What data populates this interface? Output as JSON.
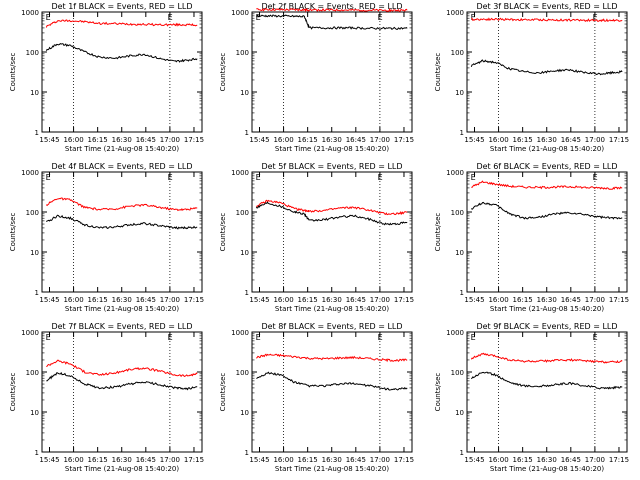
{
  "panel_common": {
    "ylabel": "Counts/sec",
    "xlabel": "Start Time (21-Aug-08 15:40:20)",
    "x_ticks": [
      "15:45",
      "16:00",
      "16:15",
      "16:30",
      "16:45",
      "17:00",
      "17:15"
    ],
    "y_ticks": [
      "1",
      "10",
      "100",
      "1000"
    ],
    "event_markers": [
      "E",
      "E"
    ],
    "colors": {
      "events": "#000000",
      "lld": "#ff0000",
      "axes": "#000000",
      "background": "#ffffff"
    }
  },
  "chart_data": [
    {
      "type": "line",
      "title": "Det 1f BLACK = Events, RED = LLD",
      "yscale": "log",
      "ylim": [
        1,
        1000
      ],
      "xlabel": "Start Time (21-Aug-08 15:40:20)",
      "ylabel": "Counts/sec",
      "grid": "dashed verticals at 16:00 and 17:00",
      "x": [
        "15:43",
        "15:50",
        "15:58",
        "16:07",
        "16:16",
        "16:26",
        "16:35",
        "16:44",
        "16:54",
        "17:03",
        "17:10",
        "17:17"
      ],
      "series": [
        {
          "name": "LLD",
          "color": "#ff0000",
          "values": [
            430,
            600,
            610,
            570,
            520,
            510,
            500,
            490,
            480,
            480,
            480,
            470
          ]
        },
        {
          "name": "Events",
          "color": "#000000",
          "values": [
            110,
            160,
            145,
            100,
            75,
            70,
            80,
            88,
            68,
            58,
            62,
            68
          ]
        }
      ]
    },
    {
      "type": "line",
      "title": "Det 2f BLACK = Events, RED = LLD",
      "yscale": "log",
      "ylim": [
        1,
        1000
      ],
      "xlabel": "Start Time (21-Aug-08 15:40:20)",
      "ylabel": "Counts/sec",
      "grid": "dashed verticals at 16:00 and 17:00",
      "x": [
        "15:43",
        "15:50",
        "15:58",
        "16:07",
        "16:13",
        "16:16",
        "16:26",
        "16:35",
        "16:44",
        "16:54",
        "17:03",
        "17:10",
        "17:17"
      ],
      "series": [
        {
          "name": "LLD",
          "color": "#ff0000",
          "values": [
            1150,
            1150,
            1140,
            1140,
            1130,
            1130,
            1120,
            1120,
            1110,
            1110,
            1100,
            1100,
            1100
          ]
        },
        {
          "name": "Events",
          "color": "#000000",
          "values": [
            800,
            800,
            790,
            780,
            770,
            400,
            400,
            400,
            400,
            390,
            390,
            390,
            390
          ]
        }
      ]
    },
    {
      "type": "line",
      "title": "Det 3f BLACK = Events, RED = LLD",
      "yscale": "log",
      "ylim": [
        1,
        1000
      ],
      "xlabel": "Start Time (21-Aug-08 15:40:20)",
      "ylabel": "Counts/sec",
      "grid": "dashed verticals at 16:00 and 17:00",
      "x": [
        "15:43",
        "15:50",
        "15:58",
        "16:07",
        "16:16",
        "16:26",
        "16:35",
        "16:44",
        "16:54",
        "17:03",
        "17:10",
        "17:17"
      ],
      "series": [
        {
          "name": "LLD",
          "color": "#ff0000",
          "values": [
            650,
            660,
            660,
            650,
            640,
            640,
            630,
            630,
            620,
            620,
            620,
            620
          ]
        },
        {
          "name": "Events",
          "color": "#000000",
          "values": [
            45,
            60,
            55,
            38,
            32,
            30,
            34,
            36,
            30,
            28,
            30,
            32
          ]
        }
      ]
    },
    {
      "type": "line",
      "title": "Det 4f BLACK = Events, RED = LLD",
      "yscale": "log",
      "ylim": [
        1,
        1000
      ],
      "xlabel": "Start Time (21-Aug-08 15:40:20)",
      "ylabel": "Counts/sec",
      "grid": "dashed verticals at 16:00 and 17:00",
      "x": [
        "15:43",
        "15:50",
        "15:58",
        "16:07",
        "16:16",
        "16:26",
        "16:35",
        "16:44",
        "16:54",
        "17:03",
        "17:10",
        "17:17"
      ],
      "series": [
        {
          "name": "LLD",
          "color": "#ff0000",
          "values": [
            150,
            220,
            200,
            130,
            115,
            120,
            140,
            150,
            130,
            115,
            115,
            125
          ]
        },
        {
          "name": "Events",
          "color": "#000000",
          "values": [
            55,
            80,
            70,
            48,
            40,
            42,
            48,
            52,
            45,
            40,
            40,
            42
          ]
        }
      ]
    },
    {
      "type": "line",
      "title": "Det 5f BLACK = Events, RED = LLD",
      "yscale": "log",
      "ylim": [
        1,
        1000
      ],
      "xlabel": "Start Time (21-Aug-08 15:40:20)",
      "ylabel": "Counts/sec",
      "grid": "dashed verticals at 16:00 and 17:00",
      "x": [
        "15:43",
        "15:50",
        "15:58",
        "16:07",
        "16:13",
        "16:16",
        "16:26",
        "16:35",
        "16:44",
        "16:54",
        "17:03",
        "17:10",
        "17:17"
      ],
      "series": [
        {
          "name": "LLD",
          "color": "#ff0000",
          "values": [
            140,
            190,
            170,
            120,
            110,
            105,
            110,
            125,
            130,
            110,
            90,
            90,
            100
          ]
        },
        {
          "name": "Events",
          "color": "#000000",
          "values": [
            130,
            170,
            140,
            100,
            90,
            60,
            65,
            75,
            80,
            65,
            50,
            50,
            55
          ]
        }
      ]
    },
    {
      "type": "line",
      "title": "Det 6f BLACK = Events, RED = LLD",
      "yscale": "log",
      "ylim": [
        1,
        1000
      ],
      "xlabel": "Start Time (21-Aug-08 15:40:20)",
      "ylabel": "Counts/sec",
      "grid": "dashed verticals at 16:00 and 17:00",
      "x": [
        "15:43",
        "15:50",
        "15:58",
        "16:07",
        "16:16",
        "16:26",
        "16:35",
        "16:44",
        "16:54",
        "17:03",
        "17:10",
        "17:17"
      ],
      "series": [
        {
          "name": "LLD",
          "color": "#ff0000",
          "values": [
            420,
            560,
            500,
            440,
            420,
            410,
            420,
            430,
            410,
            400,
            390,
            400
          ]
        },
        {
          "name": "Events",
          "color": "#000000",
          "values": [
            120,
            170,
            150,
            90,
            70,
            75,
            90,
            95,
            85,
            75,
            70,
            72
          ]
        }
      ]
    },
    {
      "type": "line",
      "title": "Det 7f BLACK = Events, RED = LLD",
      "yscale": "log",
      "ylim": [
        1,
        1000
      ],
      "xlabel": "Start Time (21-Aug-08 15:40:20)",
      "ylabel": "Counts/sec",
      "grid": "dashed verticals at 16:00 and 17:00",
      "x": [
        "15:43",
        "15:50",
        "15:58",
        "16:07",
        "16:16",
        "16:26",
        "16:35",
        "16:44",
        "16:54",
        "17:03",
        "17:10",
        "17:17"
      ],
      "series": [
        {
          "name": "LLD",
          "color": "#ff0000",
          "values": [
            140,
            190,
            160,
            100,
            85,
            95,
            115,
            125,
            105,
            85,
            80,
            90
          ]
        },
        {
          "name": "Events",
          "color": "#000000",
          "values": [
            60,
            95,
            80,
            50,
            40,
            42,
            50,
            56,
            48,
            40,
            38,
            42
          ]
        }
      ]
    },
    {
      "type": "line",
      "title": "Det 8f BLACK = Events, RED = LLD",
      "yscale": "log",
      "ylim": [
        1,
        1000
      ],
      "xlabel": "Start Time (21-Aug-08 15:40:20)",
      "ylabel": "Counts/sec",
      "grid": "dashed verticals at 16:00 and 17:00",
      "x": [
        "15:43",
        "15:50",
        "15:58",
        "16:07",
        "16:16",
        "16:26",
        "16:35",
        "16:44",
        "16:54",
        "17:03",
        "17:10",
        "17:17"
      ],
      "series": [
        {
          "name": "LLD",
          "color": "#ff0000",
          "values": [
            230,
            270,
            260,
            240,
            220,
            215,
            225,
            230,
            215,
            200,
            195,
            200
          ]
        },
        {
          "name": "Events",
          "color": "#000000",
          "values": [
            70,
            95,
            85,
            55,
            45,
            45,
            50,
            52,
            45,
            38,
            36,
            40
          ]
        }
      ]
    },
    {
      "type": "line",
      "title": "Det 9f BLACK = Events, RED = LLD",
      "yscale": "log",
      "ylim": [
        1,
        1000
      ],
      "xlabel": "Start Time (21-Aug-08 15:40:20)",
      "ylabel": "Counts/sec",
      "grid": "dashed verticals at 16:00 and 17:00",
      "x": [
        "15:43",
        "15:50",
        "15:58",
        "16:07",
        "16:16",
        "16:26",
        "16:35",
        "16:44",
        "16:54",
        "17:03",
        "17:10",
        "17:17"
      ],
      "series": [
        {
          "name": "LLD",
          "color": "#ff0000",
          "values": [
            220,
            280,
            250,
            200,
            185,
            185,
            195,
            200,
            190,
            180,
            178,
            185
          ]
        },
        {
          "name": "Events",
          "color": "#000000",
          "values": [
            70,
            100,
            85,
            55,
            45,
            44,
            48,
            52,
            45,
            40,
            40,
            42
          ]
        }
      ]
    }
  ]
}
